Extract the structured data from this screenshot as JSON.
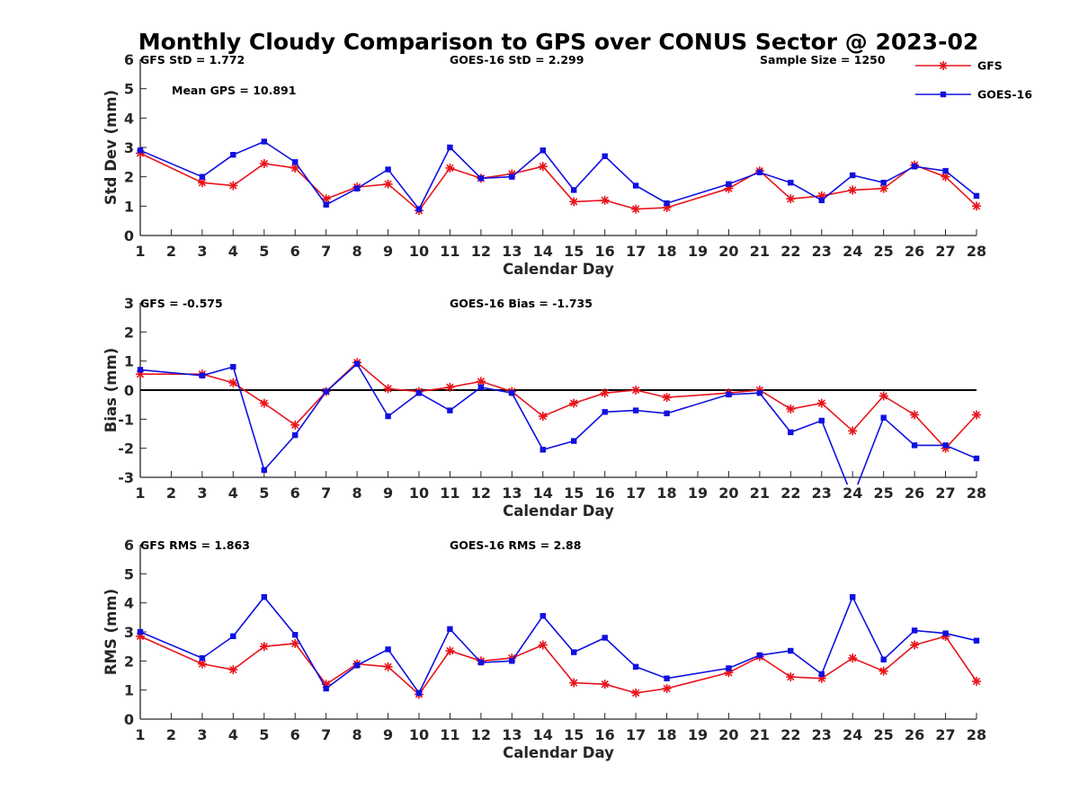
{
  "title": "Monthly Cloudy Comparison to GPS over CONUS Sector @ 2023-02",
  "colors": {
    "gfs": "#e8141b",
    "goes": "#1010e0",
    "axis": "#262626",
    "zero": "#000000"
  },
  "legend": {
    "placement": "top-right",
    "items": [
      {
        "label": "GFS",
        "marker": "asterisk"
      },
      {
        "label": "GOES-16",
        "marker": "square"
      }
    ]
  },
  "chart_data": [
    {
      "type": "line",
      "xlabel": "Calendar Day",
      "ylabel": "Std Dev (mm)",
      "xlim": [
        1,
        28
      ],
      "ylim": [
        0,
        6
      ],
      "xticks": [
        1,
        2,
        3,
        4,
        5,
        6,
        7,
        8,
        9,
        10,
        11,
        12,
        13,
        14,
        15,
        16,
        17,
        18,
        19,
        20,
        21,
        22,
        23,
        24,
        25,
        26,
        27,
        28
      ],
      "yticks": [
        0,
        1,
        2,
        3,
        4,
        5,
        6
      ],
      "zero_line": false,
      "annotations": [
        "GFS StD = 1.772",
        "GOES-16 StD = 2.299",
        "Sample Size = 1250",
        "Mean GPS = 10.891"
      ],
      "x": [
        1,
        3,
        4,
        5,
        6,
        7,
        8,
        9,
        10,
        11,
        12,
        13,
        14,
        15,
        16,
        17,
        18,
        20,
        21,
        22,
        23,
        24,
        25,
        26,
        27,
        28
      ],
      "series": [
        {
          "name": "GFS",
          "values": [
            2.8,
            1.8,
            1.7,
            2.45,
            2.3,
            1.25,
            1.65,
            1.75,
            0.85,
            2.3,
            1.95,
            2.1,
            2.35,
            1.15,
            1.2,
            0.9,
            0.95,
            1.6,
            2.2,
            1.25,
            1.35,
            1.55,
            1.6,
            2.4,
            2.0,
            1.0
          ]
        },
        {
          "name": "GOES-16",
          "values": [
            2.9,
            2.0,
            2.75,
            3.2,
            2.5,
            1.05,
            1.6,
            2.25,
            0.9,
            3.0,
            1.95,
            2.0,
            2.9,
            1.55,
            2.7,
            1.7,
            1.1,
            1.75,
            2.15,
            1.8,
            1.2,
            2.05,
            1.8,
            2.35,
            2.2,
            1.35
          ]
        }
      ]
    },
    {
      "type": "line",
      "xlabel": "Calendar Day",
      "ylabel": "Bias (mm)",
      "xlim": [
        1,
        28
      ],
      "ylim": [
        -3,
        3
      ],
      "xticks": [
        1,
        2,
        3,
        4,
        5,
        6,
        7,
        8,
        9,
        10,
        11,
        12,
        13,
        14,
        15,
        16,
        17,
        18,
        19,
        20,
        21,
        22,
        23,
        24,
        25,
        26,
        27,
        28
      ],
      "yticks": [
        -3,
        -2,
        -1,
        0,
        1,
        2,
        3
      ],
      "zero_line": true,
      "annotations": [
        "GFS = -0.575",
        "GOES-16 Bias = -1.735"
      ],
      "x": [
        1,
        3,
        4,
        5,
        6,
        7,
        8,
        9,
        10,
        11,
        12,
        13,
        14,
        15,
        16,
        17,
        18,
        20,
        21,
        22,
        23,
        24,
        25,
        26,
        27,
        28
      ],
      "series": [
        {
          "name": "GFS",
          "values": [
            0.55,
            0.55,
            0.25,
            -0.45,
            -1.2,
            -0.05,
            0.95,
            0.05,
            -0.05,
            0.1,
            0.3,
            -0.05,
            -0.9,
            -0.45,
            -0.1,
            0.0,
            -0.25,
            -0.1,
            0.0,
            -0.65,
            -0.45,
            -1.4,
            -0.2,
            -0.85,
            -2.0,
            -0.85
          ]
        },
        {
          "name": "GOES-16",
          "values": [
            0.7,
            0.5,
            0.8,
            -2.75,
            -1.55,
            -0.05,
            0.9,
            -0.9,
            -0.1,
            -0.7,
            0.1,
            -0.1,
            -2.05,
            -1.75,
            -0.75,
            -0.7,
            -0.8,
            -0.15,
            -0.1,
            -1.45,
            -1.05,
            -3.7,
            -0.95,
            -1.9,
            -1.9,
            -2.35
          ]
        }
      ]
    },
    {
      "type": "line",
      "xlabel": "Calendar Day",
      "ylabel": "RMS (mm)",
      "xlim": [
        1,
        28
      ],
      "ylim": [
        0,
        6
      ],
      "xticks": [
        1,
        2,
        3,
        4,
        5,
        6,
        7,
        8,
        9,
        10,
        11,
        12,
        13,
        14,
        15,
        16,
        17,
        18,
        19,
        20,
        21,
        22,
        23,
        24,
        25,
        26,
        27,
        28
      ],
      "yticks": [
        0,
        1,
        2,
        3,
        4,
        5,
        6
      ],
      "zero_line": false,
      "annotations": [
        "GFS RMS = 1.863",
        "GOES-16 RMS = 2.88"
      ],
      "x": [
        1,
        3,
        4,
        5,
        6,
        7,
        8,
        9,
        10,
        11,
        12,
        13,
        14,
        15,
        16,
        17,
        18,
        20,
        21,
        22,
        23,
        24,
        25,
        26,
        27,
        28
      ],
      "series": [
        {
          "name": "GFS",
          "values": [
            2.85,
            1.9,
            1.7,
            2.5,
            2.6,
            1.2,
            1.9,
            1.8,
            0.85,
            2.35,
            2.0,
            2.1,
            2.55,
            1.25,
            1.2,
            0.9,
            1.05,
            1.6,
            2.15,
            1.45,
            1.4,
            2.1,
            1.65,
            2.55,
            2.85,
            1.3
          ]
        },
        {
          "name": "GOES-16",
          "values": [
            3.0,
            2.1,
            2.85,
            4.2,
            2.9,
            1.05,
            1.85,
            2.4,
            0.9,
            3.1,
            1.95,
            2.0,
            3.55,
            2.3,
            2.8,
            1.8,
            1.4,
            1.75,
            2.2,
            2.35,
            1.55,
            4.2,
            2.05,
            3.05,
            2.95,
            2.7
          ]
        }
      ]
    }
  ]
}
